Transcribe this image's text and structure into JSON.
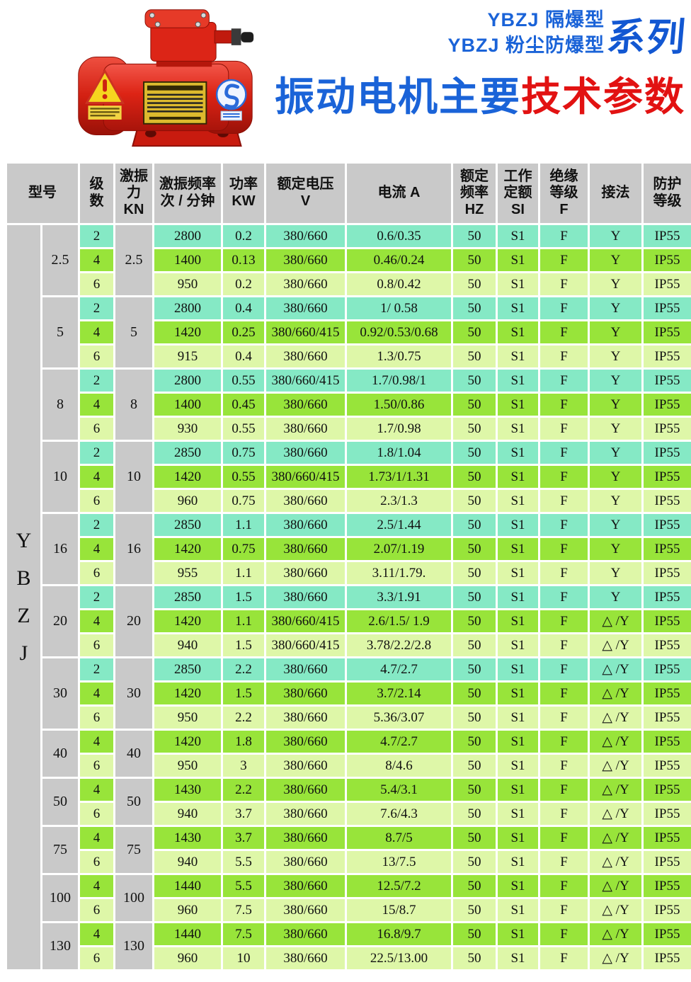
{
  "header": {
    "line1": "YBZJ 隔爆型",
    "line2": "YBZJ 粉尘防爆型",
    "series": "系列",
    "title_blue": "振动电机主要",
    "title_red": "技术参数"
  },
  "motor": {
    "description": "red explosion-proof vibration motor photo"
  },
  "table": {
    "columns": {
      "model": "型号",
      "poles": [
        "级",
        "数"
      ],
      "force": [
        "激振",
        "力",
        "KN"
      ],
      "freq": [
        "激振频率",
        "次 / 分钟"
      ],
      "power": [
        "功率",
        "KW"
      ],
      "voltage": [
        "额定电压",
        "V"
      ],
      "current": "电流 A",
      "rated_freq": [
        "额定",
        "频率",
        "HZ"
      ],
      "duty": [
        "工作",
        "定额",
        "SI"
      ],
      "insulation": [
        "绝缘",
        "等级",
        "F"
      ],
      "connection": "接法",
      "protection": [
        "防护",
        "等级"
      ]
    },
    "model_letters": [
      "Y",
      "B",
      "Z",
      "J"
    ],
    "groups": [
      {
        "model": "2.5",
        "force": "2.5",
        "rows": [
          {
            "poles": "2",
            "freq": "2800",
            "power": "0.2",
            "voltage": "380/660",
            "current": "0.6/0.35",
            "hz": "50",
            "duty": "S1",
            "ins": "F",
            "conn": "Y",
            "prot": "IP55"
          },
          {
            "poles": "4",
            "freq": "1400",
            "power": "0.13",
            "voltage": "380/660",
            "current": "0.46/0.24",
            "hz": "50",
            "duty": "S1",
            "ins": "F",
            "conn": "Y",
            "prot": "IP55"
          },
          {
            "poles": "6",
            "freq": "950",
            "power": "0.2",
            "voltage": "380/660",
            "current": "0.8/0.42",
            "hz": "50",
            "duty": "S1",
            "ins": "F",
            "conn": "Y",
            "prot": "IP55"
          }
        ]
      },
      {
        "model": "5",
        "force": "5",
        "rows": [
          {
            "poles": "2",
            "freq": "2800",
            "power": "0.4",
            "voltage": "380/660",
            "current": "1/ 0.58",
            "hz": "50",
            "duty": "S1",
            "ins": "F",
            "conn": "Y",
            "prot": "IP55"
          },
          {
            "poles": "4",
            "freq": "1420",
            "power": "0.25",
            "voltage": "380/660/415",
            "current": "0.92/0.53/0.68",
            "hz": "50",
            "duty": "S1",
            "ins": "F",
            "conn": "Y",
            "prot": "IP55"
          },
          {
            "poles": "6",
            "freq": "915",
            "power": "0.4",
            "voltage": "380/660",
            "current": "1.3/0.75",
            "hz": "50",
            "duty": "S1",
            "ins": "F",
            "conn": "Y",
            "prot": "IP55"
          }
        ]
      },
      {
        "model": "8",
        "force": "8",
        "rows": [
          {
            "poles": "2",
            "freq": "2800",
            "power": "0.55",
            "voltage": "380/660/415",
            "current": "1.7/0.98/1",
            "hz": "50",
            "duty": "S1",
            "ins": "F",
            "conn": "Y",
            "prot": "IP55"
          },
          {
            "poles": "4",
            "freq": "1400",
            "power": "0.45",
            "voltage": "380/660",
            "current": "1.50/0.86",
            "hz": "50",
            "duty": "S1",
            "ins": "F",
            "conn": "Y",
            "prot": "IP55"
          },
          {
            "poles": "6",
            "freq": "930",
            "power": "0.55",
            "voltage": "380/660",
            "current": "1.7/0.98",
            "hz": "50",
            "duty": "S1",
            "ins": "F",
            "conn": "Y",
            "prot": "IP55"
          }
        ]
      },
      {
        "model": "10",
        "force": "10",
        "rows": [
          {
            "poles": "2",
            "freq": "2850",
            "power": "0.75",
            "voltage": "380/660",
            "current": "1.8/1.04",
            "hz": "50",
            "duty": "S1",
            "ins": "F",
            "conn": "Y",
            "prot": "IP55"
          },
          {
            "poles": "4",
            "freq": "1420",
            "power": "0.55",
            "voltage": "380/660/415",
            "current": "1.73/1/1.31",
            "hz": "50",
            "duty": "S1",
            "ins": "F",
            "conn": "Y",
            "prot": "IP55"
          },
          {
            "poles": "6",
            "freq": "960",
            "power": "0.75",
            "voltage": "380/660",
            "current": "2.3/1.3",
            "hz": "50",
            "duty": "S1",
            "ins": "F",
            "conn": "Y",
            "prot": "IP55"
          }
        ]
      },
      {
        "model": "16",
        "force": "16",
        "rows": [
          {
            "poles": "2",
            "freq": "2850",
            "power": "1.1",
            "voltage": "380/660",
            "current": "2.5/1.44",
            "hz": "50",
            "duty": "S1",
            "ins": "F",
            "conn": "Y",
            "prot": "IP55"
          },
          {
            "poles": "4",
            "freq": "1420",
            "power": "0.75",
            "voltage": "380/660",
            "current": "2.07/1.19",
            "hz": "50",
            "duty": "S1",
            "ins": "F",
            "conn": "Y",
            "prot": "IP55"
          },
          {
            "poles": "6",
            "freq": "955",
            "power": "1.1",
            "voltage": "380/660",
            "current": "3.11/1.79.",
            "hz": "50",
            "duty": "S1",
            "ins": "F",
            "conn": "Y",
            "prot": "IP55"
          }
        ]
      },
      {
        "model": "20",
        "force": "20",
        "rows": [
          {
            "poles": "2",
            "freq": "2850",
            "power": "1.5",
            "voltage": "380/660",
            "current": "3.3/1.91",
            "hz": "50",
            "duty": "S1",
            "ins": "F",
            "conn": "Y",
            "prot": "IP55"
          },
          {
            "poles": "4",
            "freq": "1420",
            "power": "1.1",
            "voltage": "380/660/415",
            "current": "2.6/1.5/ 1.9",
            "hz": "50",
            "duty": "S1",
            "ins": "F",
            "conn": "△ /Y",
            "prot": "IP55"
          },
          {
            "poles": "6",
            "freq": "940",
            "power": "1.5",
            "voltage": "380/660/415",
            "current": "3.78/2.2/2.8",
            "hz": "50",
            "duty": "S1",
            "ins": "F",
            "conn": "△ /Y",
            "prot": "IP55"
          }
        ]
      },
      {
        "model": "30",
        "force": "30",
        "rows": [
          {
            "poles": "2",
            "freq": "2850",
            "power": "2.2",
            "voltage": "380/660",
            "current": "4.7/2.7",
            "hz": "50",
            "duty": "S1",
            "ins": "F",
            "conn": "△ /Y",
            "prot": "IP55"
          },
          {
            "poles": "4",
            "freq": "1420",
            "power": "1.5",
            "voltage": "380/660",
            "current": "3.7/2.14",
            "hz": "50",
            "duty": "S1",
            "ins": "F",
            "conn": "△ /Y",
            "prot": "IP55"
          },
          {
            "poles": "6",
            "freq": "950",
            "power": "2.2",
            "voltage": "380/660",
            "current": "5.36/3.07",
            "hz": "50",
            "duty": "S1",
            "ins": "F",
            "conn": "△ /Y",
            "prot": "IP55"
          }
        ]
      },
      {
        "model": "40",
        "force": "40",
        "rows": [
          {
            "poles": "4",
            "freq": "1420",
            "power": "1.8",
            "voltage": "380/660",
            "current": "4.7/2.7",
            "hz": "50",
            "duty": "S1",
            "ins": "F",
            "conn": "△ /Y",
            "prot": "IP55"
          },
          {
            "poles": "6",
            "freq": "950",
            "power": "3",
            "voltage": "380/660",
            "current": "8/4.6",
            "hz": "50",
            "duty": "S1",
            "ins": "F",
            "conn": "△ /Y",
            "prot": "IP55"
          }
        ]
      },
      {
        "model": "50",
        "force": "50",
        "rows": [
          {
            "poles": "4",
            "freq": "1430",
            "power": "2.2",
            "voltage": "380/660",
            "current": "5.4/3.1",
            "hz": "50",
            "duty": "S1",
            "ins": "F",
            "conn": "△ /Y",
            "prot": "IP55"
          },
          {
            "poles": "6",
            "freq": "940",
            "power": "3.7",
            "voltage": "380/660",
            "current": "7.6/4.3",
            "hz": "50",
            "duty": "S1",
            "ins": "F",
            "conn": "△ /Y",
            "prot": "IP55"
          }
        ]
      },
      {
        "model": "75",
        "force": "75",
        "rows": [
          {
            "poles": "4",
            "freq": "1430",
            "power": "3.7",
            "voltage": "380/660",
            "current": "8.7/5",
            "hz": "50",
            "duty": "S1",
            "ins": "F",
            "conn": "△ /Y",
            "prot": "IP55"
          },
          {
            "poles": "6",
            "freq": "940",
            "power": "5.5",
            "voltage": "380/660",
            "current": "13/7.5",
            "hz": "50",
            "duty": "S1",
            "ins": "F",
            "conn": "△ /Y",
            "prot": "IP55"
          }
        ]
      },
      {
        "model": "100",
        "force": "100",
        "rows": [
          {
            "poles": "4",
            "freq": "1440",
            "power": "5.5",
            "voltage": "380/660",
            "current": "12.5/7.2",
            "hz": "50",
            "duty": "S1",
            "ins": "F",
            "conn": "△ /Y",
            "prot": "IP55"
          },
          {
            "poles": "6",
            "freq": "960",
            "power": "7.5",
            "voltage": "380/660",
            "current": "15/8.7",
            "hz": "50",
            "duty": "S1",
            "ins": "F",
            "conn": "△ /Y",
            "prot": "IP55"
          }
        ]
      },
      {
        "model": "130",
        "force": "130",
        "rows": [
          {
            "poles": "4",
            "freq": "1440",
            "power": "7.5",
            "voltage": "380/660",
            "current": "16.8/9.7",
            "hz": "50",
            "duty": "S1",
            "ins": "F",
            "conn": "△ /Y",
            "prot": "IP55"
          },
          {
            "poles": "6",
            "freq": "960",
            "power": "10",
            "voltage": "380/660",
            "current": "22.5/13.00",
            "hz": "50",
            "duty": "S1",
            "ins": "F",
            "conn": "△ /Y",
            "prot": "IP55"
          }
        ]
      }
    ],
    "colors": {
      "pole2_row": "#85e9c5",
      "pole4_row": "#98e43a",
      "pole6_row": "#def7a8",
      "gray_cell": "#c9c9c9",
      "title_blue": "#1a63d8",
      "title_red": "#e21212"
    }
  }
}
